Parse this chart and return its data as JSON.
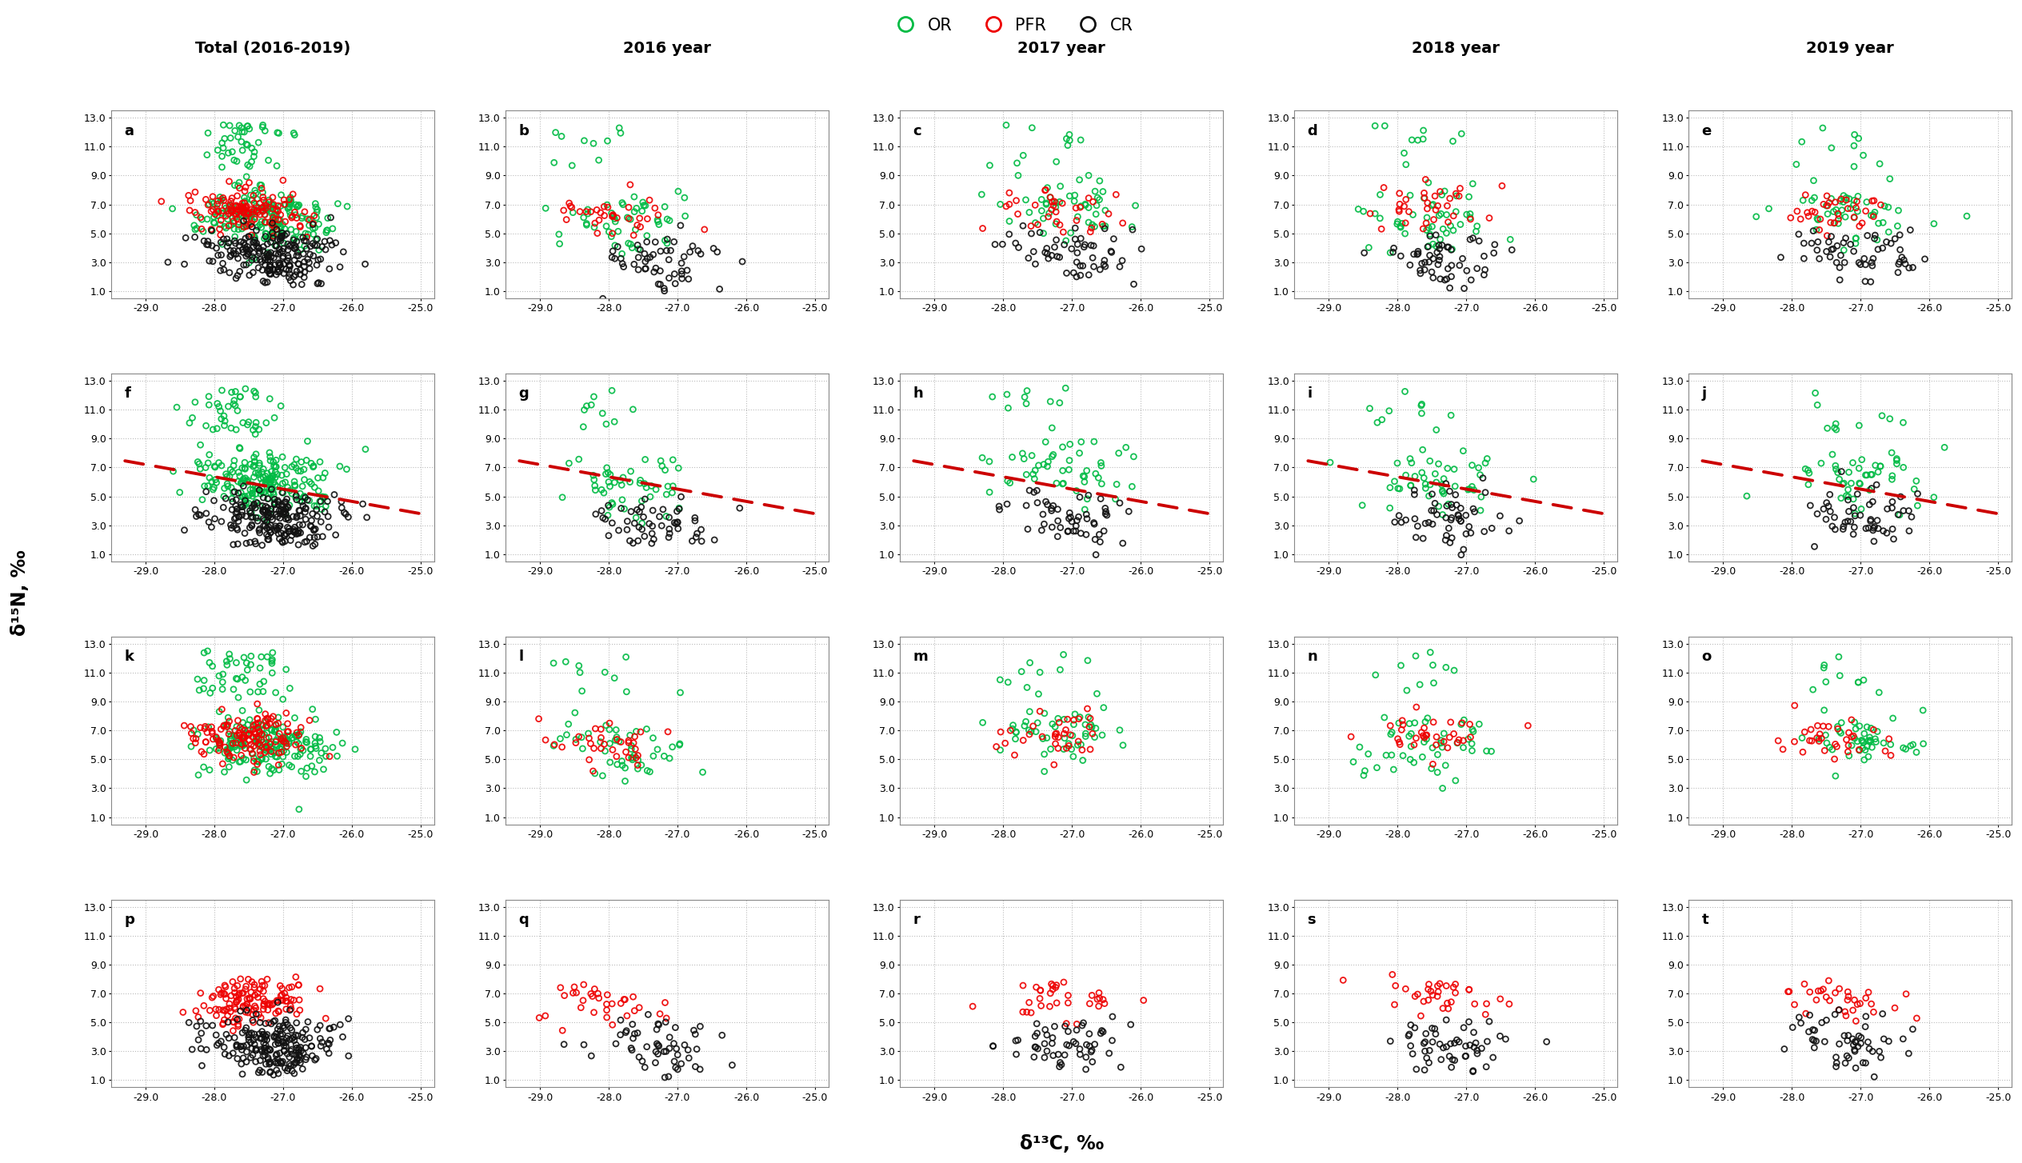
{
  "col_titles": [
    "Total (2016-2019)",
    "2016 year",
    "2017 year",
    "2018 year",
    "2019 year"
  ],
  "row_labels": [
    "a",
    "b",
    "c",
    "d",
    "e",
    "f",
    "g",
    "h",
    "i",
    "j",
    "k",
    "l",
    "m",
    "n",
    "o",
    "p",
    "q",
    "r",
    "s",
    "t"
  ],
  "xlabel": "δ¹³C, ‰",
  "ylabel": "δ¹⁵N, ‰",
  "xlim": [
    -29.5,
    -24.8
  ],
  "ylim": [
    0.5,
    13.5
  ],
  "xticks": [
    -29.0,
    -28.0,
    -27.0,
    -26.0,
    -25.0
  ],
  "yticks": [
    1.0,
    3.0,
    5.0,
    7.0,
    9.0,
    11.0,
    13.0
  ],
  "background_color": "#ffffff",
  "grid_color": "#bbbbbb",
  "OR_color": "#00bb44",
  "PFR_color": "#ee0000",
  "CR_color": "#111111",
  "trendline_color": "#cc0000"
}
